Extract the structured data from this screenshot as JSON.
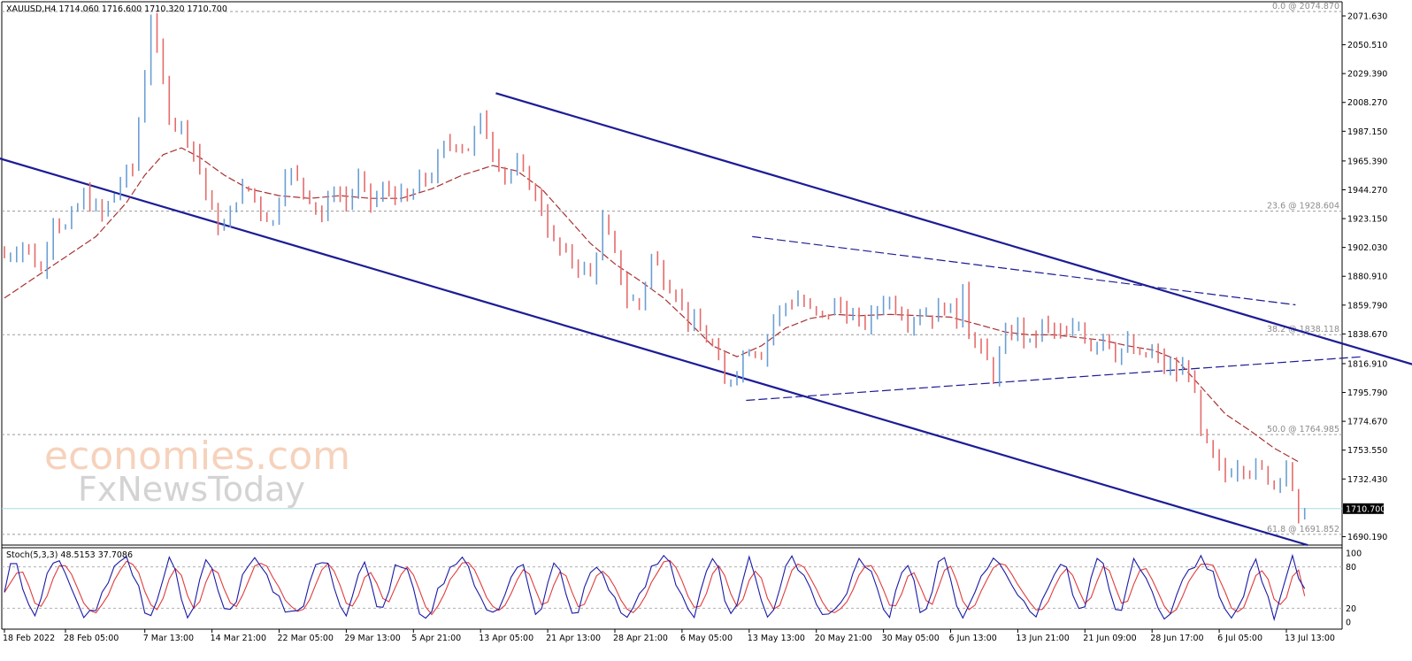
{
  "chart_data": {
    "type": "candlestick",
    "symbol_header": "XAUUSD,H4  1714.060 1716.600 1710.320 1710.700",
    "price_axis": {
      "range": [
        1684,
        2082
      ],
      "ticks": [
        "2071.630",
        "2050.510",
        "2029.390",
        "2008.270",
        "1987.150",
        "1965.390",
        "1944.270",
        "1923.150",
        "1902.030",
        "1880.910",
        "1859.790",
        "1838.670",
        "1816.910",
        "1795.790",
        "1774.670",
        "1753.550",
        "1732.430",
        "1690.190"
      ]
    },
    "current_price": {
      "label": "1710.700",
      "value": 1710.7
    },
    "fibonacci_levels": [
      {
        "label": "0.0 @ 2074.870",
        "value": 2074.87
      },
      {
        "label": "23.6 @ 1928.604",
        "value": 1928.604
      },
      {
        "label": "38.2 @ 1838.118",
        "value": 1838.118
      },
      {
        "label": "50.0 @ 1764.985",
        "value": 1764.985
      },
      {
        "label": "61.8 @ 1691.852",
        "value": 1691.852
      }
    ],
    "time_axis": {
      "bars": 220,
      "labels": [
        {
          "text": "18 Feb 2022",
          "bar": 0
        },
        {
          "text": "28 Feb 05:00",
          "bar": 10
        },
        {
          "text": "7 Mar 13:00",
          "bar": 23
        },
        {
          "text": "14 Mar 21:00",
          "bar": 34
        },
        {
          "text": "22 Mar 05:00",
          "bar": 45
        },
        {
          "text": "29 Mar 13:00",
          "bar": 56
        },
        {
          "text": "5 Apr 21:00",
          "bar": 67
        },
        {
          "text": "13 Apr 05:00",
          "bar": 78
        },
        {
          "text": "21 Apr 13:00",
          "bar": 89
        },
        {
          "text": "28 Apr 21:00",
          "bar": 100
        },
        {
          "text": "6 May 05:00",
          "bar": 111
        },
        {
          "text": "13 May 13:00",
          "bar": 122
        },
        {
          "text": "20 May 21:00",
          "bar": 133
        },
        {
          "text": "30 May 05:00",
          "bar": 144
        },
        {
          "text": "6 Jun 13:00",
          "bar": 155
        },
        {
          "text": "13 Jun 21:00",
          "bar": 166
        },
        {
          "text": "21 Jun 09:00",
          "bar": 177
        },
        {
          "text": "28 Jun 17:00",
          "bar": 188
        },
        {
          "text": "6 Jul 05:00",
          "bar": 199
        },
        {
          "text": "13 Jul 13:00",
          "bar": 210
        }
      ]
    },
    "price_path": [
      [
        0,
        1895
      ],
      [
        3,
        1905
      ],
      [
        6,
        1885
      ],
      [
        8,
        1925
      ],
      [
        10,
        1915
      ],
      [
        13,
        1940
      ],
      [
        16,
        1925
      ],
      [
        19,
        1950
      ],
      [
        21,
        1960
      ],
      [
        23,
        2030
      ],
      [
        24,
        2070
      ],
      [
        25,
        2045
      ],
      [
        27,
        2000
      ],
      [
        30,
        1985
      ],
      [
        32,
        1960
      ],
      [
        34,
        1925
      ],
      [
        36,
        1915
      ],
      [
        38,
        1940
      ],
      [
        40,
        1945
      ],
      [
        42,
        1930
      ],
      [
        44,
        1920
      ],
      [
        46,
        1960
      ],
      [
        48,
        1950
      ],
      [
        50,
        1940
      ],
      [
        52,
        1925
      ],
      [
        54,
        1945
      ],
      [
        56,
        1935
      ],
      [
        58,
        1950
      ],
      [
        60,
        1935
      ],
      [
        63,
        1945
      ],
      [
        66,
        1935
      ],
      [
        68,
        1950
      ],
      [
        70,
        1955
      ],
      [
        72,
        1975
      ],
      [
        74,
        1980
      ],
      [
        76,
        1975
      ],
      [
        78,
        1995
      ],
      [
        80,
        1975
      ],
      [
        82,
        1955
      ],
      [
        84,
        1960
      ],
      [
        86,
        1950
      ],
      [
        88,
        1930
      ],
      [
        90,
        1905
      ],
      [
        92,
        1895
      ],
      [
        94,
        1890
      ],
      [
        96,
        1880
      ],
      [
        98,
        1920
      ],
      [
        100,
        1895
      ],
      [
        102,
        1865
      ],
      [
        104,
        1860
      ],
      [
        106,
        1895
      ],
      [
        108,
        1880
      ],
      [
        110,
        1870
      ],
      [
        112,
        1850
      ],
      [
        114,
        1840
      ],
      [
        116,
        1830
      ],
      [
        118,
        1800
      ],
      [
        120,
        1815
      ],
      [
        122,
        1830
      ],
      [
        124,
        1825
      ],
      [
        126,
        1850
      ],
      [
        128,
        1860
      ],
      [
        130,
        1865
      ],
      [
        132,
        1855
      ],
      [
        134,
        1850
      ],
      [
        136,
        1860
      ],
      [
        138,
        1855
      ],
      [
        140,
        1845
      ],
      [
        142,
        1850
      ],
      [
        144,
        1865
      ],
      [
        146,
        1860
      ],
      [
        148,
        1850
      ],
      [
        150,
        1855
      ],
      [
        152,
        1852
      ],
      [
        154,
        1860
      ],
      [
        156,
        1850
      ],
      [
        157,
        1878
      ],
      [
        158,
        1840
      ],
      [
        160,
        1825
      ],
      [
        162,
        1810
      ],
      [
        164,
        1835
      ],
      [
        166,
        1845
      ],
      [
        168,
        1830
      ],
      [
        170,
        1845
      ],
      [
        172,
        1840
      ],
      [
        174,
        1835
      ],
      [
        176,
        1845
      ],
      [
        178,
        1830
      ],
      [
        180,
        1840
      ],
      [
        182,
        1825
      ],
      [
        184,
        1830
      ],
      [
        186,
        1820
      ],
      [
        188,
        1825
      ],
      [
        190,
        1815
      ],
      [
        192,
        1810
      ],
      [
        194,
        1815
      ],
      [
        196,
        1765
      ],
      [
        198,
        1745
      ],
      [
        200,
        1735
      ],
      [
        202,
        1745
      ],
      [
        204,
        1740
      ],
      [
        206,
        1738
      ],
      [
        208,
        1730
      ],
      [
        210,
        1745
      ],
      [
        211,
        1720
      ],
      [
        212,
        1700
      ],
      [
        213,
        1712
      ]
    ],
    "moving_average": [
      [
        0,
        1865
      ],
      [
        5,
        1880
      ],
      [
        10,
        1895
      ],
      [
        15,
        1910
      ],
      [
        20,
        1935
      ],
      [
        23,
        1955
      ],
      [
        26,
        1970
      ],
      [
        29,
        1975
      ],
      [
        32,
        1968
      ],
      [
        36,
        1955
      ],
      [
        40,
        1945
      ],
      [
        45,
        1940
      ],
      [
        50,
        1938
      ],
      [
        55,
        1940
      ],
      [
        60,
        1938
      ],
      [
        65,
        1938
      ],
      [
        70,
        1945
      ],
      [
        75,
        1955
      ],
      [
        80,
        1962
      ],
      [
        84,
        1958
      ],
      [
        88,
        1945
      ],
      [
        92,
        1925
      ],
      [
        96,
        1905
      ],
      [
        100,
        1890
      ],
      [
        104,
        1878
      ],
      [
        108,
        1865
      ],
      [
        112,
        1848
      ],
      [
        116,
        1830
      ],
      [
        120,
        1822
      ],
      [
        124,
        1830
      ],
      [
        128,
        1843
      ],
      [
        132,
        1850
      ],
      [
        136,
        1853
      ],
      [
        140,
        1852
      ],
      [
        145,
        1853
      ],
      [
        150,
        1852
      ],
      [
        155,
        1851
      ],
      [
        160,
        1845
      ],
      [
        164,
        1840
      ],
      [
        168,
        1838
      ],
      [
        172,
        1838
      ],
      [
        176,
        1836
      ],
      [
        180,
        1834
      ],
      [
        184,
        1830
      ],
      [
        188,
        1827
      ],
      [
        192,
        1820
      ],
      [
        196,
        1800
      ],
      [
        200,
        1780
      ],
      [
        204,
        1768
      ],
      [
        208,
        1755
      ],
      [
        212,
        1745
      ]
    ],
    "trendlines": [
      {
        "style": "solid",
        "points": [
          [
            -1,
            1967.5
          ],
          [
            213.5,
            1684
          ]
        ]
      },
      {
        "style": "solid",
        "points": [
          [
            80.5,
            2015
          ],
          [
            294.5,
            1732
          ]
        ]
      },
      {
        "style": "dashed",
        "points": [
          [
            121.5,
            1790
          ],
          [
            222.5,
            1822
          ]
        ]
      },
      {
        "style": "dashed",
        "points": [
          [
            122.5,
            1910
          ],
          [
            211.5,
            1860
          ]
        ]
      }
    ],
    "stochastic": {
      "label": "Stoch(5,3,3) 48.5153 37.7086",
      "k": 48.5153,
      "d": 37.7086,
      "range": [
        0,
        100
      ],
      "levels": [
        80,
        20
      ],
      "ticks": [
        "100",
        "80",
        "20",
        "0"
      ]
    },
    "colors": {
      "bull": "#6a9fd4",
      "bear": "#e66b6b",
      "trendline": "#1c1c96",
      "moving_average": "#a83232",
      "stoch_main": "#1a1aa6",
      "stoch_signal": "#e03c3c",
      "current_price_line": "#a8dce8"
    }
  },
  "watermark": {
    "line1": "economies.com",
    "line2": "FxNewsToday"
  }
}
